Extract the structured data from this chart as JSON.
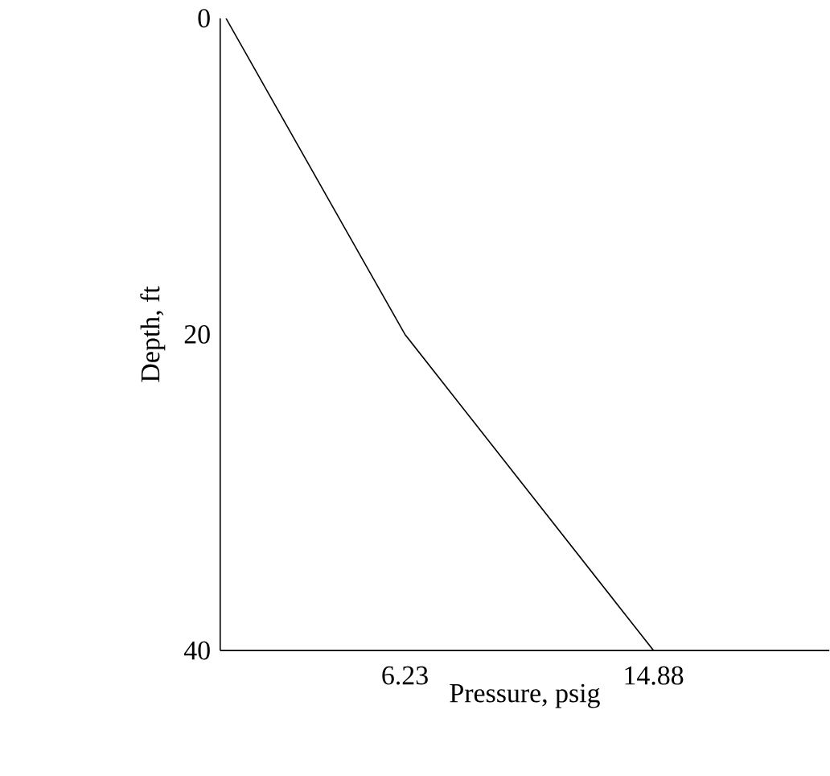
{
  "chart_data": {
    "type": "line",
    "xlabel": "Pressure, psig",
    "ylabel": "Depth, ft",
    "x": [
      0,
      6.23,
      14.88
    ],
    "values": [
      0,
      20,
      40
    ],
    "color": "#000000",
    "marker": "none",
    "line_style": "solid",
    "grid": false,
    "xlim": [
      -0.2,
      21
    ],
    "ylim": [
      40,
      0
    ],
    "xticks": [
      6.23,
      14.88
    ],
    "yticks": [
      0,
      20,
      40
    ]
  }
}
